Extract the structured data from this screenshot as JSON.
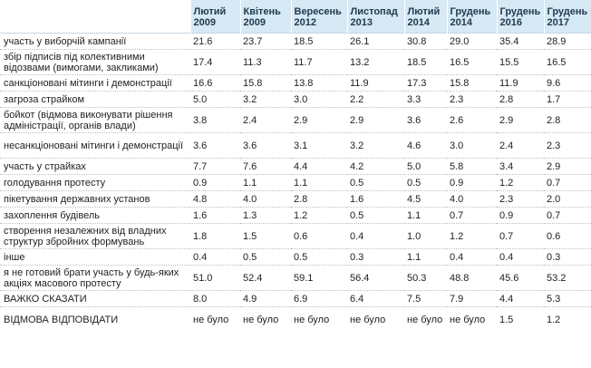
{
  "table": {
    "columns": [
      {
        "month": "Лютий",
        "year": "2009"
      },
      {
        "month": "Квітень",
        "year": "2009"
      },
      {
        "month": "Вересень",
        "year": "2012"
      },
      {
        "month": "Листопад",
        "year": "2013"
      },
      {
        "month": "Лютий",
        "year": "2014"
      },
      {
        "month": "Грудень",
        "year": "2014"
      },
      {
        "month": "Грудень",
        "year": "2016"
      },
      {
        "month": "Грудень",
        "year": "2017"
      }
    ],
    "rows": [
      {
        "label": "участь у виборчій кампанії",
        "values": [
          "21.6",
          "23.7",
          "18.5",
          "26.1",
          "30.8",
          "29.0",
          "35.4",
          "28.9"
        ]
      },
      {
        "label": "збір підписів під колективними відозвами (вимогами, закликами)",
        "values": [
          "17.4",
          "11.3",
          "11.7",
          "13.2",
          "18.5",
          "16.5",
          "15.5",
          "16.5"
        ]
      },
      {
        "label": "санкціоновані мітинги і демонстрації",
        "values": [
          "16.6",
          "15.8",
          "13.8",
          "11.9",
          "17.3",
          "15.8",
          "11.9",
          "9.6"
        ]
      },
      {
        "label": "загроза страйком",
        "values": [
          "5.0",
          "3.2",
          "3.0",
          "2.2",
          "3.3",
          "2.3",
          "2.8",
          "1.7"
        ]
      },
      {
        "label": "бойкот (відмова виконувати рішення адміністрації, органів влади)",
        "values": [
          "3.8",
          "2.4",
          "2.9",
          "2.9",
          "3.6",
          "2.6",
          "2.9",
          "2.8"
        ]
      },
      {
        "label": "несанкціоновані мітинги і демонстрації",
        "values": [
          "3.6",
          "3.6",
          "3.1",
          "3.2",
          "4.6",
          "3.0",
          "2.4",
          "2.3"
        ]
      },
      {
        "label": "участь у страйках",
        "values": [
          "7.7",
          "7.6",
          "4.4",
          "4.2",
          "5.0",
          "5.8",
          "3.4",
          "2.9"
        ]
      },
      {
        "label": "голодування протесту",
        "values": [
          "0.9",
          "1.1",
          "1.1",
          "0.5",
          "0.5",
          "0.9",
          "1.2",
          "0.7"
        ]
      },
      {
        "label": "пікетування державних установ",
        "values": [
          "4.8",
          "4.0",
          "2.8",
          "1.6",
          "4.5",
          "4.0",
          "2.3",
          "2.0"
        ]
      },
      {
        "label": "захоплення будівель",
        "values": [
          "1.6",
          "1.3",
          "1.2",
          "0.5",
          "1.1",
          "0.7",
          "0.9",
          "0.7"
        ]
      },
      {
        "label": "створення незалежних від владних структур збройних формувань",
        "values": [
          "1.8",
          "1.5",
          "0.6",
          "0.4",
          "1.0",
          "1.2",
          "0.7",
          "0.6"
        ]
      },
      {
        "label": "інше",
        "values": [
          "0.4",
          "0.5",
          "0.5",
          "0.3",
          "1.1",
          "0.4",
          "0.4",
          "0.3"
        ]
      },
      {
        "label": "я не готовий брати участь у будь-яких акціях масового протесту",
        "values": [
          "51.0",
          "52.4",
          "59.1",
          "56.4",
          "50.3",
          "48.8",
          "45.6",
          "53.2"
        ]
      },
      {
        "label": "ВАЖКО СКАЗАТИ",
        "values": [
          "8.0",
          "4.9",
          "6.9",
          "6.4",
          "7.5",
          "7.9",
          "4.4",
          "5.3"
        ]
      },
      {
        "label": "ВІДМОВА ВІДПОВІДАТИ",
        "values": [
          "не було",
          "не було",
          "не було",
          "не було",
          "не було",
          "не було",
          "1.5",
          "1.2"
        ]
      }
    ]
  }
}
